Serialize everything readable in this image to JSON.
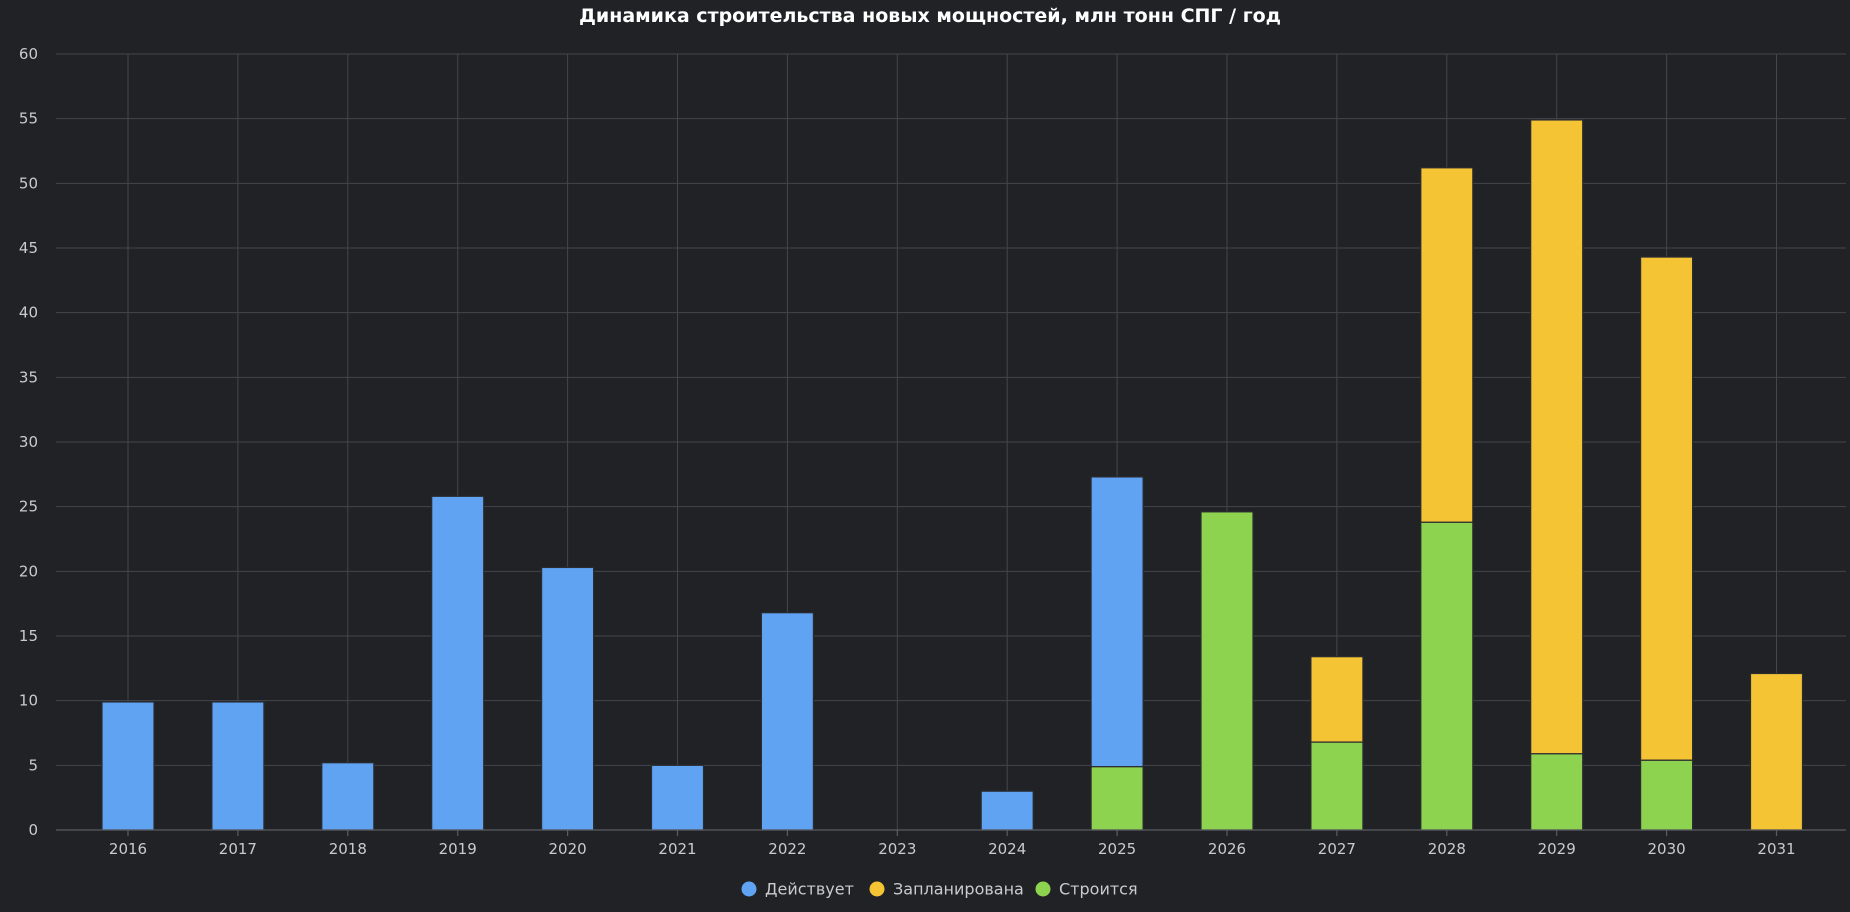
{
  "chart_data": {
    "type": "bar",
    "stacked": true,
    "title": "Динамика строительства новых мощностей, млн тонн СПГ / год",
    "xlabel": "",
    "ylabel": "",
    "ylim": [
      0,
      60
    ],
    "yticks": [
      0,
      5,
      10,
      15,
      20,
      25,
      30,
      35,
      40,
      45,
      50,
      55,
      60
    ],
    "grid": true,
    "legend_position": "bottom-center",
    "categories": [
      "2016",
      "2017",
      "2018",
      "2019",
      "2020",
      "2021",
      "2022",
      "2023",
      "2024",
      "2025",
      "2026",
      "2027",
      "2028",
      "2029",
      "2030",
      "2031"
    ],
    "series": [
      {
        "name": "Строится",
        "color": "#8dd34f",
        "values": [
          0,
          0,
          0,
          0,
          0,
          0,
          0,
          0,
          0,
          4.9,
          24.6,
          6.8,
          23.8,
          5.9,
          5.4,
          0
        ]
      },
      {
        "name": "Действует",
        "color": "#60a3f2",
        "values": [
          9.9,
          9.9,
          5.2,
          25.8,
          20.3,
          5.0,
          16.8,
          0,
          3.0,
          22.4,
          0,
          0,
          0,
          0,
          0,
          0
        ]
      },
      {
        "name": "Запланирована",
        "color": "#f5c434",
        "values": [
          0,
          0,
          0,
          0,
          0,
          0,
          0,
          0,
          0,
          0,
          0,
          6.6,
          27.4,
          49.0,
          38.9,
          12.1
        ]
      }
    ],
    "legend_order": [
      "Действует",
      "Запланирована",
      "Строится"
    ]
  }
}
